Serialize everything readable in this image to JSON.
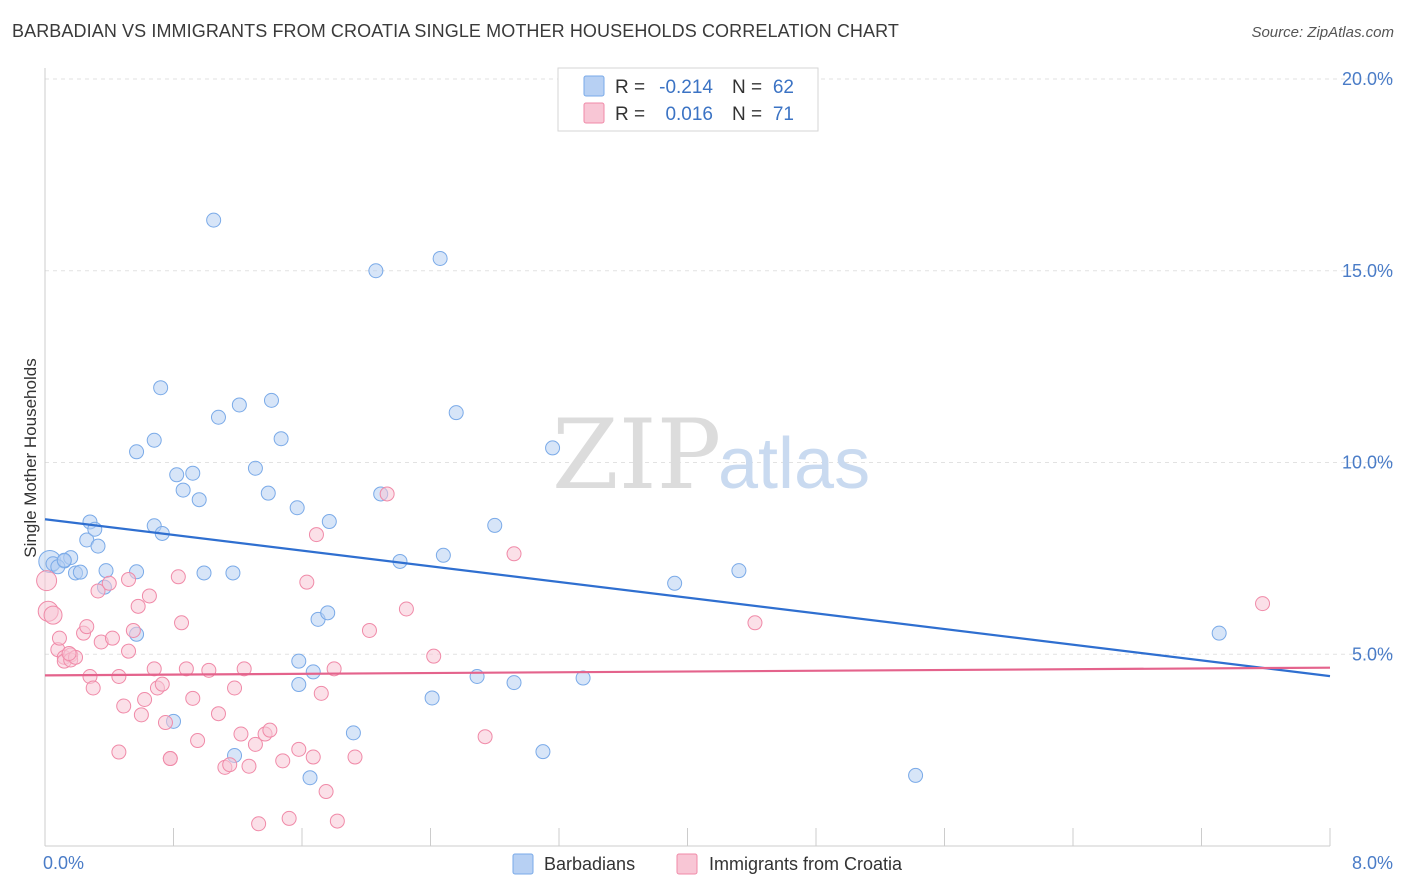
{
  "title": "BARBADIAN VS IMMIGRANTS FROM CROATIA SINGLE MOTHER HOUSEHOLDS CORRELATION CHART",
  "source": "Source: ZipAtlas.com",
  "watermark": {
    "zip": "ZIP",
    "atlas": "atlas"
  },
  "chart_data": {
    "type": "scatter",
    "ylabel": "Single Mother Households",
    "xlim": [
      0,
      8
    ],
    "ylim": [
      0,
      20
    ],
    "x_ticks": [
      "0.0%",
      "8.0%"
    ],
    "y_ticks": [
      {
        "value": 5,
        "label": "5.0%"
      },
      {
        "value": 10,
        "label": "10.0%"
      },
      {
        "value": 15,
        "label": "15.0%"
      },
      {
        "value": 20,
        "label": "20.0%"
      }
    ],
    "grid": true,
    "legend_position": "top-center",
    "stats": [
      {
        "r_label": "R =",
        "r": "-0.214",
        "n_label": "N =",
        "n": "62"
      },
      {
        "r_label": "R =",
        "r": "0.016",
        "n_label": "N =",
        "n": "71"
      }
    ],
    "series": [
      {
        "name": "Barbadians",
        "color": "#7aaae8",
        "fill": "#b7d0f3",
        "line_color": "#2f6fd0",
        "trend": [
          [
            0,
            8.52
          ],
          [
            8,
            4.43
          ]
        ],
        "points": [
          [
            0.03,
            7.42
          ],
          [
            0.05,
            7.36
          ],
          [
            0.12,
            7.43
          ],
          [
            0.16,
            7.52
          ],
          [
            0.19,
            7.12
          ],
          [
            0.22,
            7.14
          ],
          [
            0.26,
            7.98
          ],
          [
            0.28,
            8.45
          ],
          [
            0.31,
            8.26
          ],
          [
            0.33,
            7.82
          ],
          [
            0.37,
            6.75
          ],
          [
            0.38,
            7.18
          ],
          [
            0.57,
            5.52
          ],
          [
            0.57,
            7.15
          ],
          [
            0.68,
            8.35
          ],
          [
            0.73,
            8.15
          ],
          [
            0.8,
            3.25
          ],
          [
            0.82,
            9.68
          ],
          [
            0.86,
            9.28
          ],
          [
            0.92,
            9.72
          ],
          [
            0.96,
            9.03
          ],
          [
            0.99,
            7.12
          ],
          [
            1.08,
            11.18
          ],
          [
            1.17,
            7.12
          ],
          [
            1.21,
            11.5
          ],
          [
            1.31,
            9.85
          ],
          [
            1.39,
            9.2
          ],
          [
            1.41,
            11.62
          ],
          [
            1.47,
            10.62
          ],
          [
            1.57,
            8.82
          ],
          [
            1.58,
            4.21
          ],
          [
            1.58,
            4.82
          ],
          [
            1.65,
            1.78
          ],
          [
            1.67,
            4.54
          ],
          [
            1.7,
            5.91
          ],
          [
            1.76,
            6.08
          ],
          [
            1.77,
            8.46
          ],
          [
            1.92,
            2.95
          ],
          [
            2.09,
            9.18
          ],
          [
            2.21,
            7.42
          ],
          [
            2.41,
            3.86
          ],
          [
            2.48,
            7.58
          ],
          [
            2.56,
            11.3
          ],
          [
            2.69,
            4.42
          ],
          [
            2.8,
            8.36
          ],
          [
            2.92,
            4.26
          ],
          [
            3.1,
            2.46
          ],
          [
            3.16,
            10.38
          ],
          [
            2.46,
            15.32
          ],
          [
            2.06,
            15.0
          ],
          [
            1.05,
            16.32
          ],
          [
            0.72,
            11.95
          ],
          [
            0.68,
            10.58
          ],
          [
            0.57,
            10.28
          ],
          [
            1.18,
            2.36
          ],
          [
            3.35,
            4.38
          ],
          [
            3.92,
            6.85
          ],
          [
            4.32,
            7.18
          ],
          [
            5.42,
            1.84
          ],
          [
            7.31,
            5.55
          ],
          [
            0.08,
            7.28
          ],
          [
            0.12,
            7.45
          ]
        ],
        "sizes": [
          22,
          14,
          14,
          14,
          14,
          14,
          14,
          14,
          14,
          14,
          14,
          14,
          14,
          14,
          14,
          14,
          14,
          14,
          14,
          14,
          14,
          14,
          14,
          14,
          14,
          14,
          14,
          14,
          14,
          14,
          14,
          14,
          14,
          14,
          14,
          14,
          14,
          14,
          14,
          14,
          14,
          14,
          14,
          14,
          14,
          14,
          14,
          14,
          14,
          14,
          14,
          14,
          14,
          14,
          14,
          14,
          14,
          14,
          14,
          14,
          14,
          14
        ]
      },
      {
        "name": "Immigrants from Croatia",
        "color": "#f08aa8",
        "fill": "#f8c6d5",
        "line_color": "#e4638c",
        "trend": [
          [
            0,
            4.45
          ],
          [
            8,
            4.65
          ]
        ],
        "points": [
          [
            0.01,
            6.92
          ],
          [
            0.02,
            6.12
          ],
          [
            0.05,
            6.02
          ],
          [
            0.08,
            5.12
          ],
          [
            0.09,
            5.42
          ],
          [
            0.12,
            4.92
          ],
          [
            0.12,
            4.82
          ],
          [
            0.16,
            4.98
          ],
          [
            0.16,
            4.85
          ],
          [
            0.19,
            4.92
          ],
          [
            0.24,
            5.55
          ],
          [
            0.26,
            5.72
          ],
          [
            0.28,
            4.42
          ],
          [
            0.3,
            4.12
          ],
          [
            0.33,
            6.65
          ],
          [
            0.35,
            5.32
          ],
          [
            0.4,
            6.85
          ],
          [
            0.42,
            5.42
          ],
          [
            0.46,
            4.42
          ],
          [
            0.49,
            3.65
          ],
          [
            0.52,
            5.08
          ],
          [
            0.55,
            5.62
          ],
          [
            0.58,
            6.25
          ],
          [
            0.6,
            3.42
          ],
          [
            0.65,
            6.52
          ],
          [
            0.68,
            4.62
          ],
          [
            0.7,
            4.12
          ],
          [
            0.73,
            4.22
          ],
          [
            0.75,
            3.22
          ],
          [
            0.78,
            2.28
          ],
          [
            0.83,
            7.02
          ],
          [
            0.85,
            5.82
          ],
          [
            0.88,
            4.62
          ],
          [
            0.92,
            3.85
          ],
          [
            0.95,
            2.75
          ],
          [
            1.02,
            4.58
          ],
          [
            1.08,
            3.45
          ],
          [
            1.12,
            2.05
          ],
          [
            1.18,
            4.12
          ],
          [
            1.22,
            2.92
          ],
          [
            1.24,
            4.62
          ],
          [
            1.27,
            2.08
          ],
          [
            1.31,
            2.65
          ],
          [
            1.33,
            0.58
          ],
          [
            1.37,
            2.92
          ],
          [
            1.4,
            3.02
          ],
          [
            1.48,
            2.22
          ],
          [
            1.52,
            0.72
          ],
          [
            1.58,
            2.52
          ],
          [
            1.63,
            6.88
          ],
          [
            1.67,
            2.32
          ],
          [
            1.72,
            3.98
          ],
          [
            1.75,
            1.42
          ],
          [
            1.8,
            4.62
          ],
          [
            1.82,
            0.65
          ],
          [
            1.93,
            2.32
          ],
          [
            2.02,
            5.62
          ],
          [
            2.13,
            9.18
          ],
          [
            2.25,
            6.18
          ],
          [
            2.42,
            4.95
          ],
          [
            2.74,
            2.85
          ],
          [
            2.92,
            7.62
          ],
          [
            4.42,
            5.82
          ],
          [
            7.58,
            6.32
          ],
          [
            0.46,
            2.45
          ],
          [
            0.62,
            3.82
          ],
          [
            0.78,
            2.28
          ],
          [
            1.15,
            2.12
          ],
          [
            1.69,
            8.12
          ],
          [
            0.15,
            5.02
          ],
          [
            0.52,
            6.95
          ]
        ],
        "sizes": [
          20,
          20,
          18,
          14,
          14,
          14,
          14,
          14,
          14,
          14,
          14,
          14,
          14,
          14,
          14,
          14,
          14,
          14,
          14,
          14,
          14,
          14,
          14,
          14,
          14,
          14,
          14,
          14,
          14,
          14,
          14,
          14,
          14,
          14,
          14,
          14,
          14,
          14,
          14,
          14,
          14,
          14,
          14,
          14,
          14,
          14,
          14,
          14,
          14,
          14,
          14,
          14,
          14,
          14,
          14,
          14,
          14,
          14,
          14,
          14,
          14,
          14,
          14,
          14,
          14,
          14,
          14,
          14,
          14,
          14,
          14
        ]
      }
    ]
  }
}
